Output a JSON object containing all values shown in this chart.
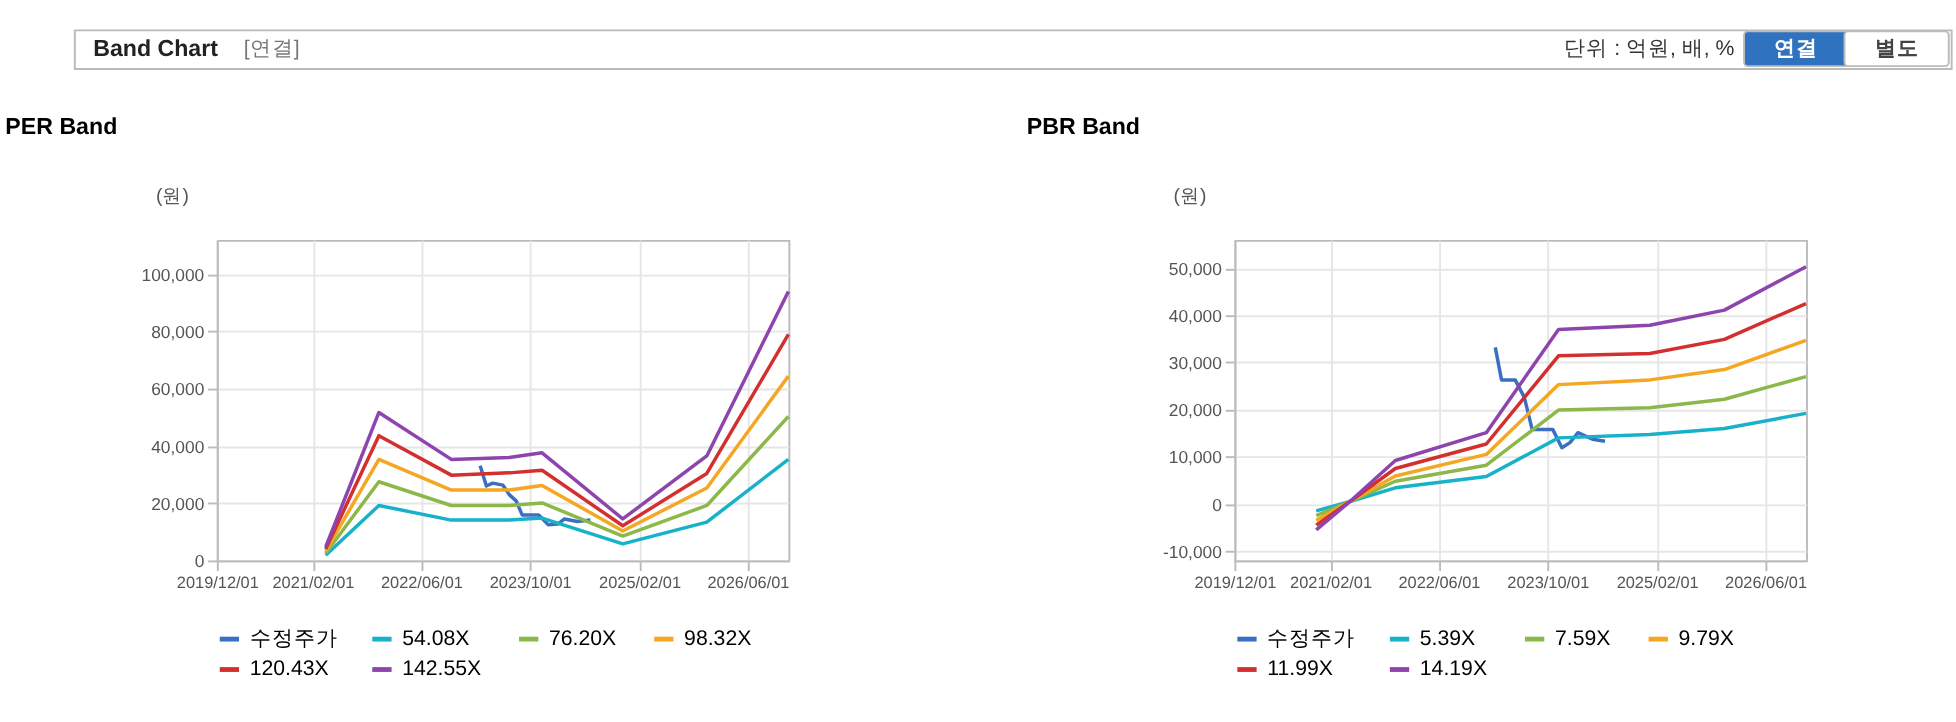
{
  "chart_data": [
    {
      "type": "line",
      "title": "PER Band",
      "ylabel": "(원)",
      "annotations": [
        "Band Chart",
        "[연결]",
        "단위 : 억원, 배, %",
        "연결",
        "별도"
      ],
      "xlim": [
        "2019-12-01",
        "2026-12-01"
      ],
      "xticks": [
        {
          "value": "2019-12-01",
          "label": "2019/12/01"
        },
        {
          "value": "2021-02-01",
          "label": "2021/02/01"
        },
        {
          "value": "2022-06-01",
          "label": "2022/06/01"
        },
        {
          "value": "2023-10-01",
          "label": "2023/10/01"
        },
        {
          "value": "2025-02-01",
          "label": "2025/02/01"
        },
        {
          "value": "2026-06-01",
          "label": "2026/06/01"
        }
      ],
      "ylim": [
        0,
        112000
      ],
      "yticks": [
        0,
        {
          "value": 20000,
          "label": "20,000"
        },
        {
          "value": 40000,
          "label": "40,000"
        },
        {
          "value": 60000,
          "label": "60,000"
        },
        {
          "value": 80000,
          "label": "80,000"
        },
        {
          "value": 100000,
          "label": "100,000"
        }
      ],
      "grid": true,
      "legend": "bottom",
      "marker": "none",
      "line_style": "solid",
      "series": [
        {
          "name": "수정주가",
          "color": "#3a6fc4",
          "x": [
            "2023-02-21",
            "2023-03-21",
            "2023-04-18",
            "2023-06-03",
            "2023-07-01",
            "2023-08-01",
            "2023-08-28",
            "2023-11-10",
            "2023-12-22",
            "2024-02-04",
            "2024-03-04",
            "2024-05-01",
            "2024-06-28"
          ],
          "values": [
            33100,
            26000,
            27000,
            26300,
            23000,
            20800,
            15900,
            15900,
            12500,
            12700,
            14500,
            13600,
            14100
          ]
        },
        {
          "name": "54.08X",
          "color": "#17b2c9",
          "x": [
            "2021-04-01",
            "2021-11-25",
            "2022-10-15",
            "2023-07-01",
            "2023-11-25",
            "2024-11-20",
            "2025-12-01",
            "2026-12-01"
          ],
          "values": [
            1800,
            19200,
            14100,
            14100,
            14800,
            5800,
            13400,
            35300
          ]
        },
        {
          "name": "76.20X",
          "color": "#8cb84a",
          "x": [
            "2021-04-01",
            "2021-11-25",
            "2022-10-15",
            "2023-07-01",
            "2023-11-25",
            "2024-11-20",
            "2025-12-01",
            "2026-12-01"
          ],
          "values": [
            2500,
            27500,
            19200,
            19200,
            20100,
            8500,
            19200,
            50300
          ]
        },
        {
          "name": "98.32X",
          "color": "#f5a623",
          "x": [
            "2021-04-01",
            "2021-11-25",
            "2022-10-15",
            "2023-07-01",
            "2023-11-25",
            "2024-11-20",
            "2025-12-01",
            "2026-12-01"
          ],
          "values": [
            3300,
            35300,
            24600,
            24600,
            26200,
            10300,
            25300,
            64400
          ]
        },
        {
          "name": "120.43X",
          "color": "#d32f2f",
          "x": [
            "2021-04-01",
            "2021-11-25",
            "2022-10-15",
            "2023-07-01",
            "2023-11-25",
            "2024-11-20",
            "2025-12-01",
            "2026-12-01"
          ],
          "values": [
            4000,
            43600,
            29800,
            30600,
            31500,
            12100,
            30400,
            79000
          ]
        },
        {
          "name": "142.55X",
          "color": "#8e44ad",
          "x": [
            "2021-04-01",
            "2021-11-25",
            "2022-10-15",
            "2023-07-01",
            "2023-11-25",
            "2024-11-20",
            "2025-12-01",
            "2026-12-01"
          ],
          "values": [
            4700,
            51700,
            35300,
            36000,
            37600,
            14500,
            36500,
            94000
          ]
        }
      ]
    },
    {
      "type": "line",
      "title": "PBR Band",
      "ylabel": "(원)",
      "xlim": [
        "2019-12-01",
        "2026-12-01"
      ],
      "xticks": [
        {
          "value": "2019-12-01",
          "label": "2019/12/01"
        },
        {
          "value": "2021-02-01",
          "label": "2021/02/01"
        },
        {
          "value": "2022-06-01",
          "label": "2022/06/01"
        },
        {
          "value": "2023-10-01",
          "label": "2023/10/01"
        },
        {
          "value": "2025-02-01",
          "label": "2025/02/01"
        },
        {
          "value": "2026-06-01",
          "label": "2026/06/01"
        }
      ],
      "ylim": [
        -12000,
        56000
      ],
      "yticks": [
        {
          "value": -10000,
          "label": "-10,000"
        },
        0,
        {
          "value": 10000,
          "label": "10,000"
        },
        {
          "value": 20000,
          "label": "20,000"
        },
        {
          "value": 30000,
          "label": "30,000"
        },
        {
          "value": 40000,
          "label": "40,000"
        },
        {
          "value": 50000,
          "label": "50,000"
        }
      ],
      "grid": true,
      "legend": "bottom",
      "marker": "none",
      "line_style": "solid",
      "series": [
        {
          "name": "수정주가",
          "color": "#3a6fc4",
          "x": [
            "2023-02-10",
            "2023-03-10",
            "2023-05-10",
            "2023-06-20",
            "2023-07-25",
            "2023-10-25",
            "2023-12-05",
            "2024-01-10",
            "2024-02-15",
            "2024-04-20",
            "2024-06-15"
          ],
          "values": [
            33200,
            26300,
            26300,
            22600,
            15800,
            15800,
            11900,
            13000,
            15100,
            13700,
            13300
          ]
        },
        {
          "name": "5.39X",
          "color": "#17b2c9",
          "x": [
            "2020-12-01",
            "2021-05-01",
            "2021-11-20",
            "2023-01-01",
            "2023-11-20",
            "2025-01-01",
            "2025-12-01",
            "2026-12-01"
          ],
          "values": [
            -1500,
            500,
            3400,
            5800,
            14000,
            14700,
            16000,
            19200
          ]
        },
        {
          "name": "7.59X",
          "color": "#8cb84a",
          "x": [
            "2020-12-01",
            "2021-05-01",
            "2021-11-20",
            "2023-01-01",
            "2023-11-20",
            "2025-01-01",
            "2025-12-01",
            "2026-12-01"
          ],
          "values": [
            -2500,
            500,
            4800,
            8200,
            19900,
            20400,
            22200,
            27000
          ]
        },
        {
          "name": "9.79X",
          "color": "#f5a623",
          "x": [
            "2020-12-01",
            "2021-05-01",
            "2021-11-20",
            "2023-01-01",
            "2023-11-20",
            "2025-01-01",
            "2025-12-01",
            "2026-12-01"
          ],
          "values": [
            -3500,
            500,
            5900,
            10500,
            25300,
            26300,
            28500,
            34700
          ]
        },
        {
          "name": "11.99X",
          "color": "#d32f2f",
          "x": [
            "2020-12-01",
            "2021-05-01",
            "2021-11-20",
            "2023-01-01",
            "2023-11-20",
            "2025-01-01",
            "2025-12-01",
            "2026-12-01"
          ],
          "values": [
            -4500,
            500,
            7500,
            12700,
            31400,
            31900,
            34900,
            42500
          ]
        },
        {
          "name": "14.19X",
          "color": "#8e44ad",
          "x": [
            "2020-12-01",
            "2021-05-01",
            "2021-11-20",
            "2023-01-01",
            "2023-11-20",
            "2025-01-01",
            "2025-12-01",
            "2026-12-01"
          ],
          "values": [
            -5500,
            500,
            9200,
            15100,
            37000,
            37900,
            41100,
            50300
          ]
        }
      ]
    }
  ]
}
